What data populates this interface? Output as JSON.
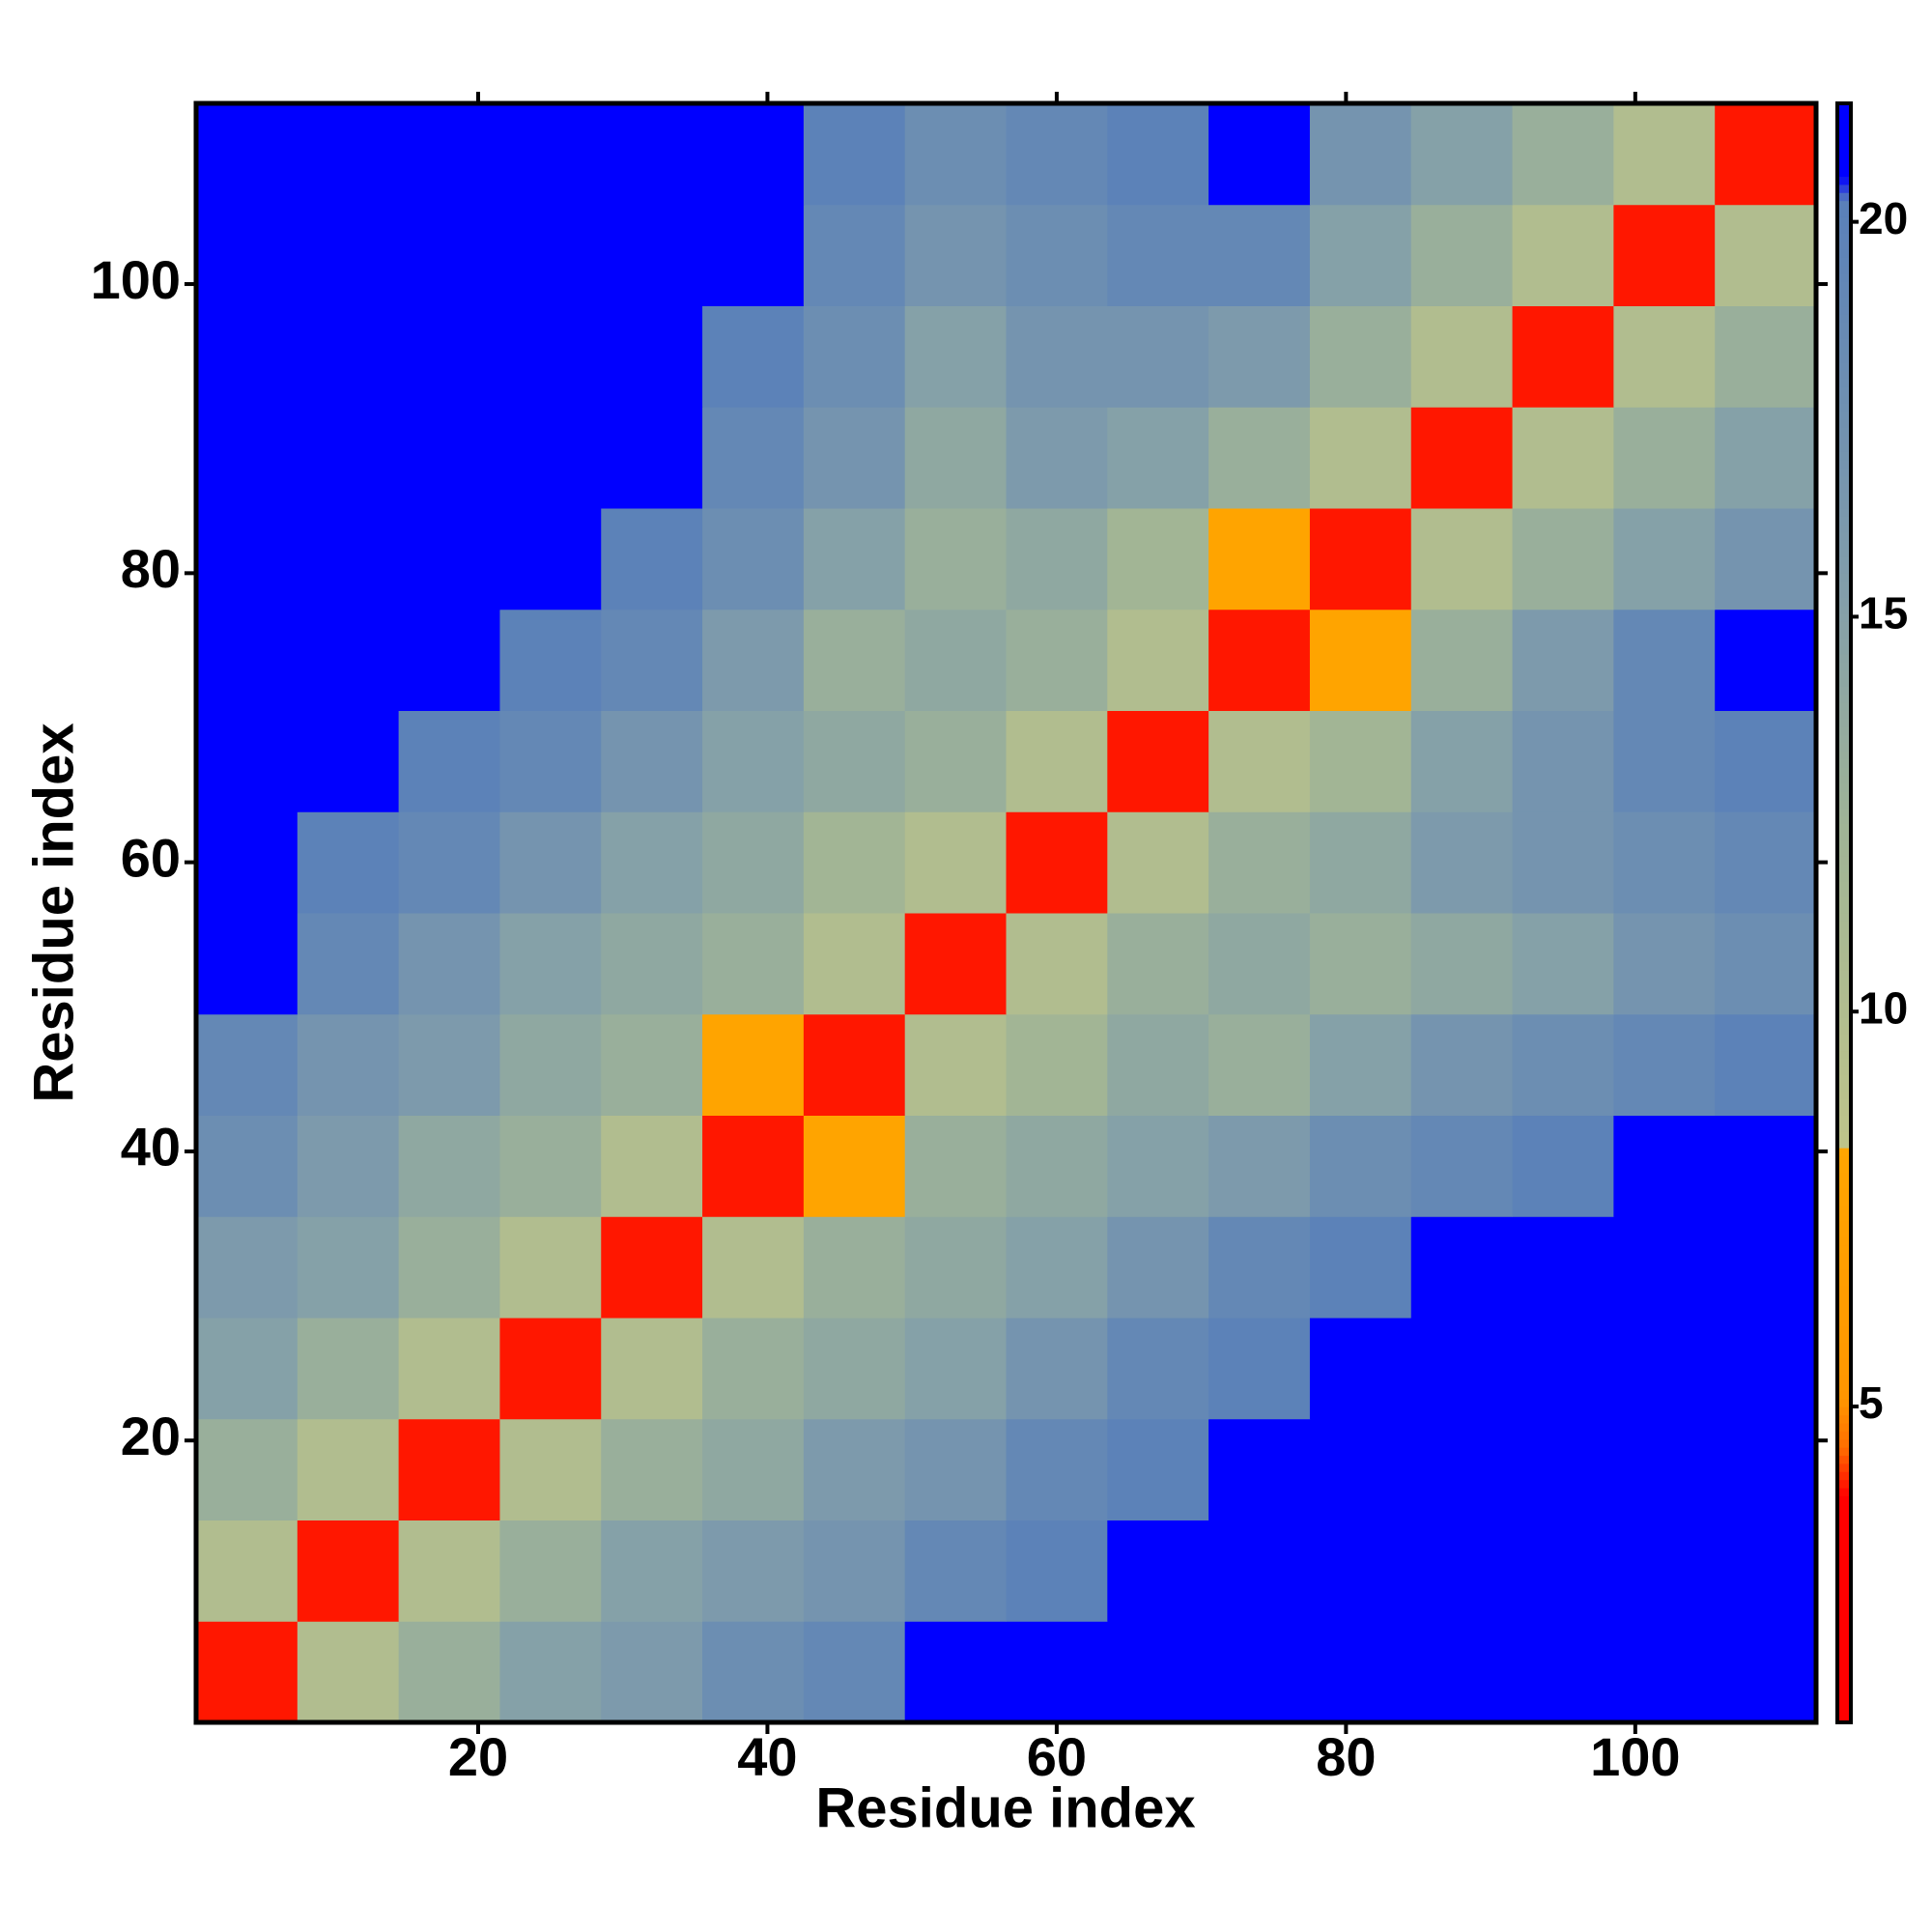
{
  "chart_data": {
    "type": "heatmap",
    "xlabel": "Residue index",
    "ylabel": "Residue index",
    "x": [
      4,
      11,
      18,
      25,
      32,
      39,
      46,
      53,
      60,
      67,
      74,
      81,
      88,
      95,
      102,
      109
    ],
    "y": [
      4,
      11,
      18,
      25,
      32,
      39,
      46,
      53,
      60,
      67,
      74,
      81,
      88,
      95,
      102,
      109
    ],
    "z": [
      [
        4,
        10,
        13,
        15,
        16,
        18,
        19,
        21,
        21,
        22,
        22,
        22,
        22,
        22,
        22,
        22
      ],
      [
        10,
        4,
        10,
        13,
        15,
        16,
        17,
        19,
        20,
        21,
        22,
        22,
        22,
        22,
        22,
        22
      ],
      [
        13,
        10,
        4,
        10,
        13,
        14,
        16,
        17,
        19,
        20,
        21,
        22,
        22,
        22,
        22,
        22
      ],
      [
        15,
        13,
        10,
        4,
        10,
        13,
        14,
        15,
        17,
        19,
        20,
        21,
        22,
        22,
        22,
        22
      ],
      [
        16,
        15,
        13,
        10,
        4,
        10,
        13,
        14,
        15,
        17,
        19,
        20,
        21,
        21,
        22,
        22
      ],
      [
        18,
        16,
        14,
        13,
        10,
        4,
        8,
        13,
        14,
        15,
        16,
        18,
        19,
        20,
        21,
        21
      ],
      [
        19,
        17,
        16,
        14,
        13,
        8,
        4,
        10,
        12,
        14,
        13,
        15,
        17,
        18,
        19,
        20
      ],
      [
        21,
        19,
        17,
        15,
        14,
        13,
        10,
        4,
        10,
        13,
        14,
        13,
        14,
        15,
        17,
        18
      ],
      [
        21,
        20,
        19,
        17,
        15,
        14,
        12,
        10,
        4,
        10,
        13,
        14,
        16,
        17,
        18,
        19
      ],
      [
        22,
        21,
        20,
        19,
        17,
        15,
        14,
        13,
        10,
        4,
        10,
        12,
        15,
        17,
        19,
        20
      ],
      [
        22,
        22,
        21,
        20,
        19,
        16,
        13,
        14,
        13,
        10,
        4,
        8,
        13,
        16,
        19,
        21
      ],
      [
        22,
        22,
        22,
        21,
        20,
        18,
        15,
        13,
        14,
        12,
        8,
        4,
        10,
        13,
        15,
        17
      ],
      [
        22,
        22,
        22,
        22,
        21,
        19,
        17,
        14,
        16,
        15,
        13,
        10,
        4,
        10,
        13,
        15
      ],
      [
        22,
        22,
        22,
        22,
        21,
        20,
        18,
        15,
        17,
        17,
        16,
        13,
        10,
        4,
        10,
        13
      ],
      [
        22,
        22,
        22,
        22,
        22,
        21,
        19,
        17,
        18,
        19,
        19,
        15,
        13,
        10,
        4,
        10
      ],
      [
        22,
        22,
        22,
        22,
        22,
        21,
        20,
        18,
        19,
        20,
        21,
        17,
        15,
        13,
        10,
        4
      ]
    ],
    "xlim": [
      0.5,
      112.5
    ],
    "ylim": [
      0.5,
      112.5
    ],
    "xticks": [
      20,
      40,
      60,
      80,
      100
    ],
    "yticks": [
      20,
      40,
      60,
      80,
      100
    ],
    "zlim": [
      1,
      21.5
    ],
    "zticks": [
      5,
      10,
      15,
      20
    ]
  }
}
